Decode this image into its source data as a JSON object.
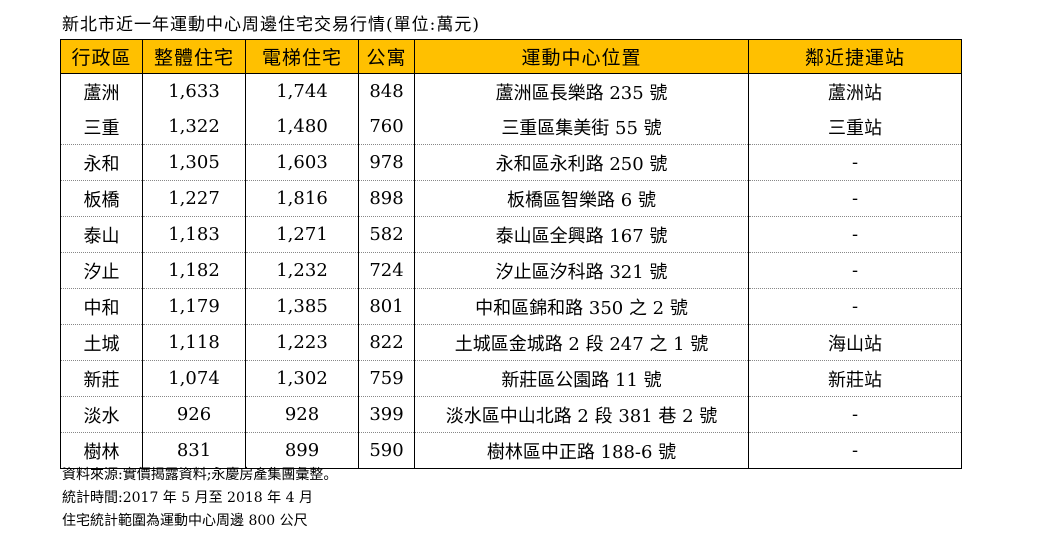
{
  "title": "新北市近一年運動中心周邊住宅交易行情(單位:萬元)",
  "columns": [
    "行政區",
    "整體住宅",
    "電梯住宅",
    "公寓",
    "運動中心位置",
    "鄰近捷運站"
  ],
  "rows": [
    [
      "蘆洲",
      "1,633",
      "1,744",
      "848",
      "蘆洲區長樂路 235 號",
      "蘆洲站"
    ],
    [
      "三重",
      "1,322",
      "1,480",
      "760",
      "三重區集美街 55 號",
      "三重站"
    ],
    [
      "永和",
      "1,305",
      "1,603",
      "978",
      "永和區永利路 250 號",
      "-"
    ],
    [
      "板橋",
      "1,227",
      "1,816",
      "898",
      "板橋區智樂路 6 號",
      "-"
    ],
    [
      "泰山",
      "1,183",
      "1,271",
      "582",
      "泰山區全興路 167 號",
      "-"
    ],
    [
      "汐止",
      "1,182",
      "1,232",
      "724",
      "汐止區汐科路 321 號",
      "-"
    ],
    [
      "中和",
      "1,179",
      "1,385",
      "801",
      "中和區錦和路 350 之 2 號",
      "-"
    ],
    [
      "土城",
      "1,118",
      "1,223",
      "822",
      "土城區金城路 2 段 247 之 1 號",
      "海山站"
    ],
    [
      "新莊",
      "1,074",
      "1,302",
      "759",
      "新莊區公園路 11 號",
      "新莊站"
    ],
    [
      "淡水",
      "926",
      "928",
      "399",
      "淡水區中山北路 2 段 381 巷 2 號",
      "-"
    ],
    [
      "樹林",
      "831",
      "899",
      "590",
      "樹林區中正路 188-6 號",
      "-"
    ]
  ],
  "notes": [
    "資料來源:實價揭露資料;永慶房產集團彙整。",
    "統計時間:2017 年 5 月至 2018 年 4 月",
    "住宅統計範圍為運動中心周邊 800 公尺"
  ],
  "colors": {
    "header_bg": "#ffc000"
  }
}
